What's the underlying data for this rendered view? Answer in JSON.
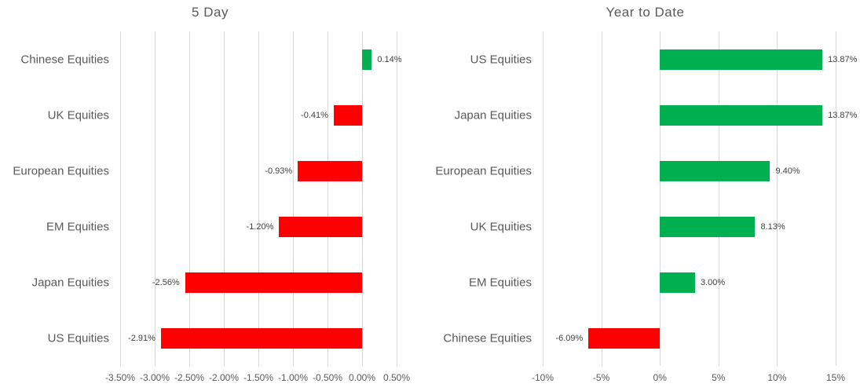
{
  "colors": {
    "positive": "#00B050",
    "negative": "#FF0000",
    "gridline": "#D9D9D9",
    "axis_text": "#595959",
    "data_label_text": "#404040"
  },
  "chart_data": [
    {
      "type": "bar",
      "orientation": "horizontal",
      "title": "5 Day",
      "grid": true,
      "legend": "none",
      "categories": [
        "Chinese Equities",
        "UK Equities",
        "European Equities",
        "EM Equities",
        "Japan Equities",
        "US Equities"
      ],
      "values": [
        0.14,
        -0.41,
        -0.93,
        -1.2,
        -2.56,
        -2.91
      ],
      "value_labels": [
        "0.14%",
        "-0.41%",
        "-0.93%",
        "-1.20%",
        "-2.56%",
        "-2.91%"
      ],
      "axis": {
        "min": -3.5,
        "max": 0.5,
        "step": 0.5,
        "tick_labels": [
          "-3.50%",
          "-3.00%",
          "-2.50%",
          "-2.00%",
          "-1.50%",
          "-1.00%",
          "-0.50%",
          "0.00%",
          "0.50%"
        ]
      }
    },
    {
      "type": "bar",
      "orientation": "horizontal",
      "title": "Year to Date",
      "grid": true,
      "legend": "none",
      "categories": [
        "US Equities",
        "Japan Equities",
        "European Equities",
        "UK Equities",
        "EM Equities",
        "Chinese Equities"
      ],
      "values": [
        13.87,
        13.87,
        9.4,
        8.13,
        3.0,
        -6.09
      ],
      "value_labels": [
        "13.87%",
        "13.87%",
        "9.40%",
        "8.13%",
        "3.00%",
        "-6.09%"
      ],
      "axis": {
        "min": -10,
        "max": 15,
        "step": 5,
        "tick_labels": [
          "-10%",
          "-5%",
          "0%",
          "5%",
          "10%",
          "15%"
        ]
      }
    }
  ]
}
